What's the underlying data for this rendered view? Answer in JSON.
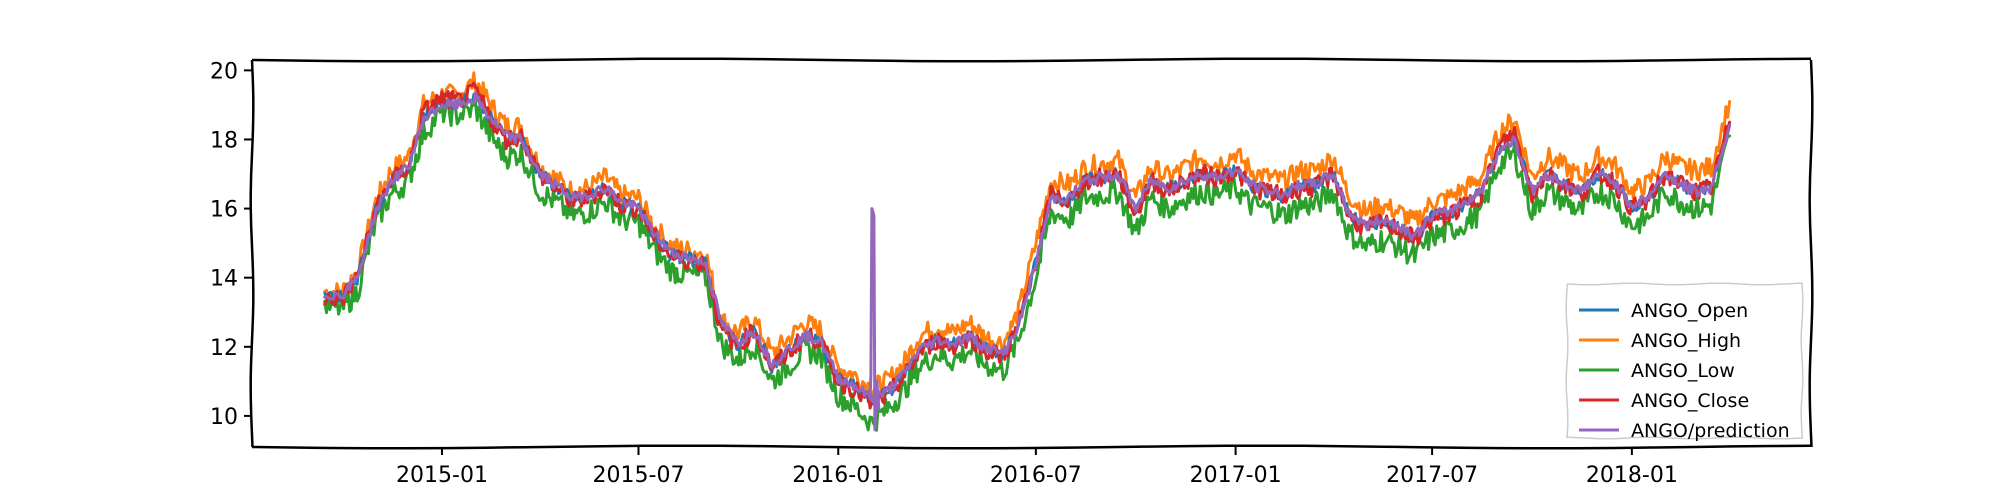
{
  "chart_data": {
    "type": "line",
    "title": "",
    "xlabel": "",
    "ylabel": "",
    "x_ticks": [
      "2015-01",
      "2015-07",
      "2016-01",
      "2016-07",
      "2017-01",
      "2017-07",
      "2018-01"
    ],
    "y_ticks": [
      10,
      12,
      14,
      16,
      18,
      20
    ],
    "xlim": [
      "2014-07-10",
      "2018-06-15"
    ],
    "ylim": [
      9.1,
      20.3
    ],
    "grid": false,
    "legend_position": "bottom-right",
    "series": [
      {
        "name": "ANGO_Open",
        "color": "#1f77b4"
      },
      {
        "name": "ANGO_High",
        "color": "#ff7f0e"
      },
      {
        "name": "ANGO_Low",
        "color": "#2ca02c"
      },
      {
        "name": "ANGO_Close",
        "color": "#d62728"
      },
      {
        "name": "ANGO/prediction",
        "color": "#9467bd"
      }
    ],
    "x": [
      "2014-09-15",
      "2014-10-01",
      "2014-10-15",
      "2014-11-01",
      "2014-11-15",
      "2014-12-01",
      "2014-12-15",
      "2015-01-01",
      "2015-01-15",
      "2015-02-01",
      "2015-02-15",
      "2015-03-01",
      "2015-03-15",
      "2015-04-01",
      "2015-04-15",
      "2015-05-01",
      "2015-05-15",
      "2015-06-01",
      "2015-06-15",
      "2015-07-01",
      "2015-07-15",
      "2015-08-01",
      "2015-08-15",
      "2015-09-01",
      "2015-09-15",
      "2015-10-01",
      "2015-10-15",
      "2015-11-01",
      "2015-11-15",
      "2015-12-01",
      "2015-12-15",
      "2016-01-01",
      "2016-01-15",
      "2016-02-01",
      "2016-02-15",
      "2016-03-01",
      "2016-03-15",
      "2016-04-01",
      "2016-04-15",
      "2016-05-01",
      "2016-05-15",
      "2016-06-01",
      "2016-06-15",
      "2016-07-01",
      "2016-07-15",
      "2016-08-01",
      "2016-08-15",
      "2016-09-01",
      "2016-09-15",
      "2016-10-01",
      "2016-10-15",
      "2016-11-01",
      "2016-11-15",
      "2016-12-01",
      "2016-12-15",
      "2017-01-01",
      "2017-01-15",
      "2017-02-01",
      "2017-02-15",
      "2017-03-01",
      "2017-03-15",
      "2017-04-01",
      "2017-04-15",
      "2017-05-01",
      "2017-05-15",
      "2017-06-01",
      "2017-06-15",
      "2017-07-01",
      "2017-07-15",
      "2017-08-01",
      "2017-08-15",
      "2017-09-01",
      "2017-09-15",
      "2017-10-01",
      "2017-10-15",
      "2017-11-01",
      "2017-11-15",
      "2017-12-01",
      "2017-12-15",
      "2018-01-01",
      "2018-01-15",
      "2018-02-01",
      "2018-02-15",
      "2018-03-01",
      "2018-03-15",
      "2018-04-01"
    ],
    "close": [
      13.4,
      13.4,
      14.0,
      16.0,
      16.8,
      17.2,
      18.8,
      19.2,
      19.1,
      19.4,
      18.6,
      18.0,
      18.1,
      17.0,
      16.6,
      16.2,
      16.3,
      16.6,
      16.1,
      16.0,
      15.2,
      14.6,
      14.5,
      14.4,
      12.5,
      12.0,
      12.5,
      11.4,
      11.8,
      12.3,
      12.2,
      11.0,
      10.8,
      10.3,
      10.6,
      11.1,
      11.8,
      12.2,
      12.0,
      12.3,
      11.9,
      11.7,
      12.6,
      14.5,
      16.4,
      16.2,
      16.8,
      16.9,
      17.0,
      15.8,
      16.8,
      16.5,
      16.8,
      17.0,
      16.9,
      17.1,
      16.6,
      16.5,
      16.3,
      16.6,
      16.6,
      17.0,
      15.8,
      15.4,
      15.6,
      15.4,
      15.1,
      15.7,
      15.8,
      16.1,
      16.4,
      17.8,
      18.2,
      16.4,
      17.0,
      16.7,
      16.4,
      17.0,
      16.8,
      16.0,
      16.2,
      17.0,
      16.7,
      16.5,
      16.6,
      18.5
    ],
    "high": [
      13.6,
      13.6,
      14.2,
      16.2,
      17.1,
      17.5,
      19.0,
      19.3,
      19.3,
      19.7,
      19.0,
      18.4,
      18.4,
      17.2,
      16.9,
      16.5,
      16.6,
      16.9,
      16.4,
      16.3,
      15.5,
      14.9,
      14.8,
      14.7,
      12.8,
      12.4,
      12.8,
      11.8,
      12.2,
      12.7,
      12.5,
      11.4,
      11.2,
      10.8,
      11.0,
      11.5,
      12.3,
      12.6,
      12.4,
      12.7,
      12.3,
      12.1,
      13.0,
      15.0,
      16.8,
      16.7,
      17.2,
      17.3,
      17.4,
      16.3,
      17.2,
      16.9,
      17.2,
      17.5,
      17.3,
      17.6,
      17.1,
      16.9,
      16.8,
      17.1,
      17.1,
      17.5,
      16.4,
      15.9,
      16.1,
      15.9,
      15.6,
      16.2,
      16.3,
      16.6,
      16.9,
      18.2,
      18.6,
      16.9,
      17.5,
      17.2,
      16.9,
      17.5,
      17.3,
      16.5,
      16.7,
      17.5,
      17.2,
      17.1,
      17.2,
      19.1
    ],
    "low": [
      13.2,
      13.1,
      13.6,
      15.6,
      16.4,
      16.8,
      18.2,
      18.8,
      18.7,
      18.9,
      18.1,
      17.5,
      17.6,
      16.5,
      16.2,
      15.8,
      15.9,
      16.2,
      15.7,
      15.6,
      14.8,
      14.2,
      14.1,
      14.0,
      12.1,
      11.6,
      12.1,
      11.0,
      11.4,
      11.9,
      11.8,
      10.6,
      10.3,
      9.8,
      10.2,
      10.7,
      11.4,
      11.8,
      11.6,
      11.9,
      11.5,
      11.3,
      12.2,
      14.0,
      15.9,
      15.7,
      16.3,
      16.4,
      16.5,
      15.3,
      16.3,
      16.0,
      16.3,
      16.5,
      16.4,
      16.6,
      16.1,
      16.0,
      15.8,
      16.1,
      16.1,
      16.5,
      15.3,
      14.9,
      15.1,
      14.9,
      14.6,
      15.2,
      15.3,
      15.6,
      15.9,
      17.3,
      17.6,
      15.9,
      16.5,
      16.2,
      15.9,
      16.5,
      16.3,
      15.5,
      15.7,
      16.5,
      16.2,
      16.0,
      16.1,
      18.1
    ],
    "prediction": [
      13.5,
      13.5,
      14.0,
      15.9,
      16.8,
      17.2,
      18.6,
      19.0,
      19.0,
      19.2,
      18.6,
      18.1,
      18.0,
      17.0,
      16.7,
      16.3,
      16.4,
      16.6,
      16.2,
      16.0,
      15.3,
      14.7,
      14.6,
      14.4,
      12.7,
      12.1,
      12.5,
      11.5,
      11.9,
      12.3,
      12.2,
      11.1,
      10.9,
      10.5,
      10.7,
      11.2,
      11.9,
      12.2,
      12.1,
      12.3,
      12.0,
      11.8,
      12.6,
      14.4,
      16.3,
      16.3,
      16.8,
      16.9,
      17.0,
      16.0,
      16.8,
      16.6,
      16.8,
      17.0,
      16.9,
      17.1,
      16.7,
      16.5,
      16.4,
      16.7,
      16.7,
      17.0,
      15.9,
      15.5,
      15.7,
      15.5,
      15.2,
      15.8,
      15.9,
      16.2,
      16.5,
      17.7,
      18.0,
      16.5,
      17.0,
      16.7,
      16.5,
      17.0,
      16.8,
      16.1,
      16.3,
      17.0,
      16.7,
      16.5,
      16.6,
      18.4
    ],
    "annotations": [
      {
        "x": "2016-02-01",
        "y": 16.0,
        "series": "ANGO/prediction",
        "note": "spike"
      },
      {
        "x": "2016-02-03",
        "y": 9.6,
        "series": "ANGO/prediction",
        "note": "dip"
      }
    ]
  }
}
